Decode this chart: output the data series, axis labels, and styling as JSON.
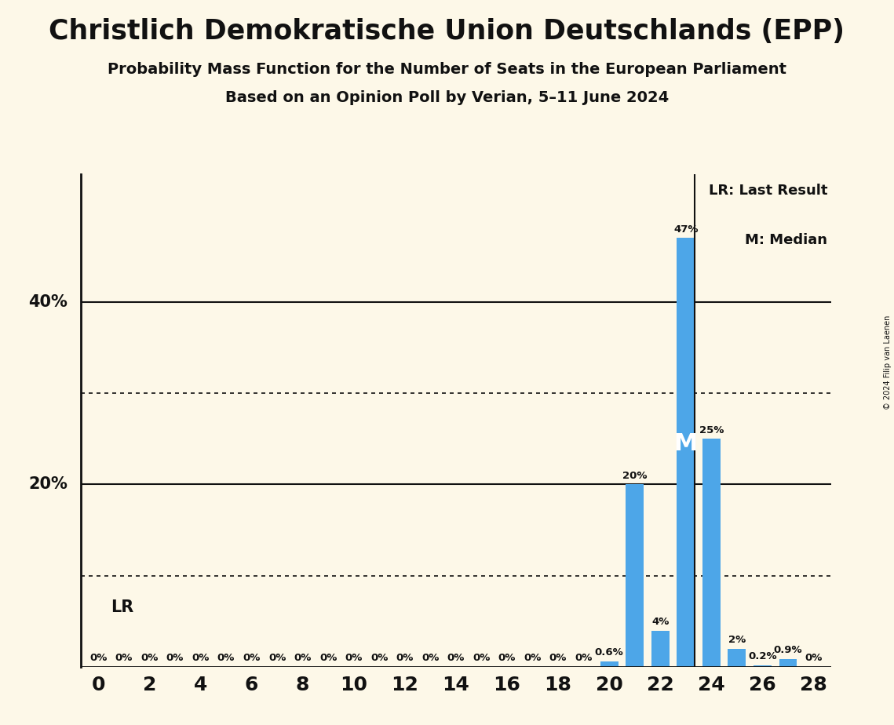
{
  "title": "Christlich Demokratische Union Deutschlands (EPP)",
  "subtitle1": "Probability Mass Function for the Number of Seats in the European Parliament",
  "subtitle2": "Based on an Opinion Poll by Verian, 5–11 June 2024",
  "copyright": "© 2024 Filip van Laenen",
  "seats": [
    0,
    1,
    2,
    3,
    4,
    5,
    6,
    7,
    8,
    9,
    10,
    11,
    12,
    13,
    14,
    15,
    16,
    17,
    18,
    19,
    20,
    21,
    22,
    23,
    24,
    25,
    26,
    27,
    28
  ],
  "probabilities": [
    0.0,
    0.0,
    0.0,
    0.0,
    0.0,
    0.0,
    0.0,
    0.0,
    0.0,
    0.0,
    0.0,
    0.0,
    0.0,
    0.0,
    0.0,
    0.0,
    0.0,
    0.0,
    0.0,
    0.0,
    0.6,
    20.0,
    4.0,
    47.0,
    25.0,
    2.0,
    0.2,
    0.9,
    0.0
  ],
  "bar_color": "#4da6e8",
  "background_color": "#fdf8e8",
  "text_color": "#111111",
  "LR_seat": 23,
  "M_seat": 23,
  "LR_label": "LR",
  "M_label": "M",
  "legend_LR": "LR: Last Result",
  "legend_M": "M: Median",
  "solid_yticks": [
    20,
    40
  ],
  "dotted_yticks": [
    10,
    30
  ],
  "ylim": [
    0,
    54
  ],
  "xlim": [
    -0.7,
    28.7
  ],
  "xticks": [
    0,
    2,
    4,
    6,
    8,
    10,
    12,
    14,
    16,
    18,
    20,
    22,
    24,
    26,
    28
  ]
}
